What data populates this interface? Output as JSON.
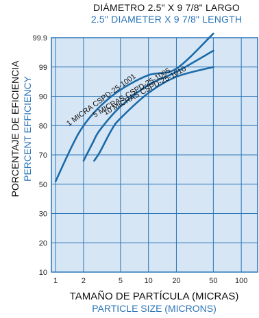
{
  "chart_data": {
    "type": "line",
    "title": "DIÁMETRO 2.5\" X 9 7/8\" LARGO",
    "subtitle": "2.5\" DIAMETER X 9 7/8\" LENGTH",
    "xlabel": "TAMAÑO DE PARTÍCULA (MICRAS)",
    "xlabel_en": "PARTICLE SIZE (MICRONS)",
    "ylabel": "PORCENTAJE DE EFICIENCIA",
    "ylabel_en": "PERCENT EFFICIENCY",
    "x_scale": "log",
    "xlim": [
      0.9,
      150
    ],
    "x_ticks": [
      1,
      2,
      5,
      10,
      20,
      50,
      100
    ],
    "y_scale": "probability",
    "y_ticks": [
      10,
      20,
      30,
      50,
      70,
      80,
      90,
      99,
      99.9
    ],
    "grid": true,
    "series": [
      {
        "name": "1 MICRA CSPD-25-1001",
        "x": [
          1,
          1.5,
          2,
          3,
          5,
          10,
          20,
          50
        ],
        "y": [
          52,
          73,
          80,
          86.5,
          92,
          96.5,
          98.5,
          99.93
        ]
      },
      {
        "name": "5 MICRAS CSPD-25-1005",
        "x": [
          2,
          2.5,
          3,
          5,
          10,
          20,
          50
        ],
        "y": [
          66,
          74,
          78.5,
          86.5,
          93.5,
          97.5,
          99.5
        ]
      },
      {
        "name": "10 MICRAS CSPD-25-1010",
        "x": [
          2.6,
          3,
          4,
          5,
          10,
          20,
          50
        ],
        "y": [
          66,
          71,
          78.5,
          82.5,
          91,
          96,
          99
        ]
      }
    ],
    "colors": {
      "line": "#1a6aa9",
      "grid": "#2a74b8",
      "plot_bg": "#d6e6f4"
    }
  }
}
